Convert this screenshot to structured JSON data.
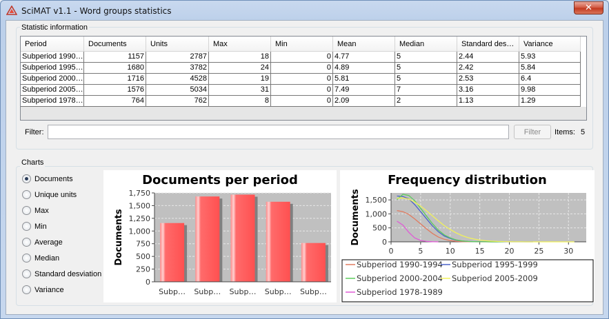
{
  "window": {
    "title": "SciMAT v1.1 - Word groups statistics",
    "close_label": "✕"
  },
  "stats": {
    "group_label": "Statistic information",
    "columns": [
      "Period",
      "Documents",
      "Units",
      "Max",
      "Min",
      "Mean",
      "Median",
      "Standard des…",
      "Variance"
    ],
    "rows": [
      [
        "Subperiod 1990…",
        "1157",
        "2787",
        "18",
        "0",
        "4.77",
        "5",
        "2.44",
        "5.93"
      ],
      [
        "Subperiod 1995…",
        "1680",
        "3782",
        "24",
        "0",
        "4.89",
        "5",
        "2.42",
        "5.84"
      ],
      [
        "Subperiod 2000…",
        "1716",
        "4528",
        "19",
        "0",
        "5.81",
        "5",
        "2.53",
        "6.4"
      ],
      [
        "Subperiod 2005…",
        "1576",
        "5034",
        "31",
        "0",
        "7.49",
        "7",
        "3.16",
        "9.98"
      ],
      [
        "Subperiod 1978…",
        "764",
        "762",
        "8",
        "0",
        "2.09",
        "2",
        "1.13",
        "1.29"
      ]
    ],
    "filter_label": "Filter:",
    "filter_value": "",
    "filter_button": "Filter",
    "items_label": "Items:",
    "items_count": "5"
  },
  "charts": {
    "group_label": "Charts",
    "options": [
      {
        "label": "Documents",
        "selected": true
      },
      {
        "label": "Unique units",
        "selected": false
      },
      {
        "label": "Max",
        "selected": false
      },
      {
        "label": "Min",
        "selected": false
      },
      {
        "label": "Average",
        "selected": false
      },
      {
        "label": "Median",
        "selected": false
      },
      {
        "label": "Standard desviation",
        "selected": false
      },
      {
        "label": "Variance",
        "selected": false
      }
    ]
  },
  "chart_data": [
    {
      "type": "bar",
      "title": "Documents per period",
      "xlabel": "",
      "ylabel": "Documents",
      "categories": [
        "Subp…",
        "Subp…",
        "Subp…",
        "Subp…",
        "Subp…"
      ],
      "values": [
        1157,
        1680,
        1716,
        1576,
        764
      ],
      "ylim": [
        0,
        1750
      ],
      "yticks": [
        0,
        250,
        500,
        750,
        1000,
        1250,
        1500,
        1750
      ],
      "ytick_labels": [
        "0",
        "250",
        "500",
        "750",
        "1,000",
        "1,250",
        "1,500",
        "1,750"
      ],
      "bar_color": "#ff5a5a",
      "plot_bg": "#c0c0c0",
      "grid": true
    },
    {
      "type": "line",
      "title": "Frequency distribution",
      "xlabel": "",
      "ylabel": "Documents",
      "xlim": [
        0,
        33
      ],
      "ylim": [
        0,
        1750
      ],
      "xticks": [
        0,
        5,
        10,
        15,
        20,
        25,
        30
      ],
      "yticks": [
        0,
        500,
        1000,
        1500
      ],
      "ytick_labels": [
        "0",
        "500",
        "1,000",
        "1,500"
      ],
      "plot_bg": "#c0c0c0",
      "grid": true,
      "legend_position": "bottom",
      "series": [
        {
          "name": "Subperiod 1990-1994",
          "color": "#e07a5f",
          "x": [
            1,
            2,
            3,
            4,
            5,
            6,
            7,
            8,
            9,
            10,
            11,
            12,
            13,
            14,
            15,
            16,
            17,
            18
          ],
          "y": [
            1120,
            1080,
            980,
            820,
            640,
            460,
            300,
            170,
            90,
            45,
            20,
            8,
            4,
            2,
            1,
            0,
            0,
            0
          ]
        },
        {
          "name": "Subperiod 1995-1999",
          "color": "#4a63c9",
          "x": [
            1,
            2,
            3,
            4,
            5,
            6,
            7,
            8,
            9,
            10,
            11,
            12,
            13,
            14,
            15,
            16,
            17,
            18,
            19,
            20,
            21,
            22,
            23,
            24
          ],
          "y": [
            1640,
            1620,
            1540,
            1330,
            1080,
            820,
            570,
            360,
            210,
            120,
            60,
            28,
            14,
            7,
            4,
            2,
            1,
            1,
            0,
            0,
            0,
            0,
            0,
            0
          ]
        },
        {
          "name": "Subperiod 2000-2004",
          "color": "#5ccc5c",
          "x": [
            1,
            2,
            3,
            4,
            5,
            6,
            7,
            8,
            9,
            10,
            11,
            12,
            13,
            14,
            15,
            16,
            17,
            18,
            19
          ],
          "y": [
            1510,
            1700,
            1660,
            1470,
            1200,
            920,
            650,
            420,
            250,
            140,
            70,
            32,
            15,
            7,
            3,
            2,
            1,
            0,
            0
          ]
        },
        {
          "name": "Subperiod 2005-2009",
          "color": "#f2f25a",
          "x": [
            1,
            2,
            3,
            4,
            5,
            6,
            7,
            8,
            9,
            10,
            11,
            12,
            13,
            14,
            15,
            16,
            17,
            18,
            19,
            20,
            21,
            22,
            23,
            24,
            25,
            26,
            27,
            28,
            29,
            30,
            31
          ],
          "y": [
            1560,
            1570,
            1530,
            1420,
            1280,
            1110,
            930,
            750,
            580,
            440,
            320,
            225,
            150,
            100,
            65,
            40,
            25,
            15,
            9,
            5,
            3,
            2,
            1,
            1,
            0,
            0,
            0,
            0,
            0,
            0,
            0
          ]
        },
        {
          "name": "Subperiod 1978-1989",
          "color": "#e05ad6",
          "x": [
            1,
            2,
            3,
            4,
            5,
            6,
            7,
            8
          ],
          "y": [
            740,
            600,
            340,
            140,
            50,
            15,
            4,
            1
          ]
        }
      ]
    }
  ]
}
